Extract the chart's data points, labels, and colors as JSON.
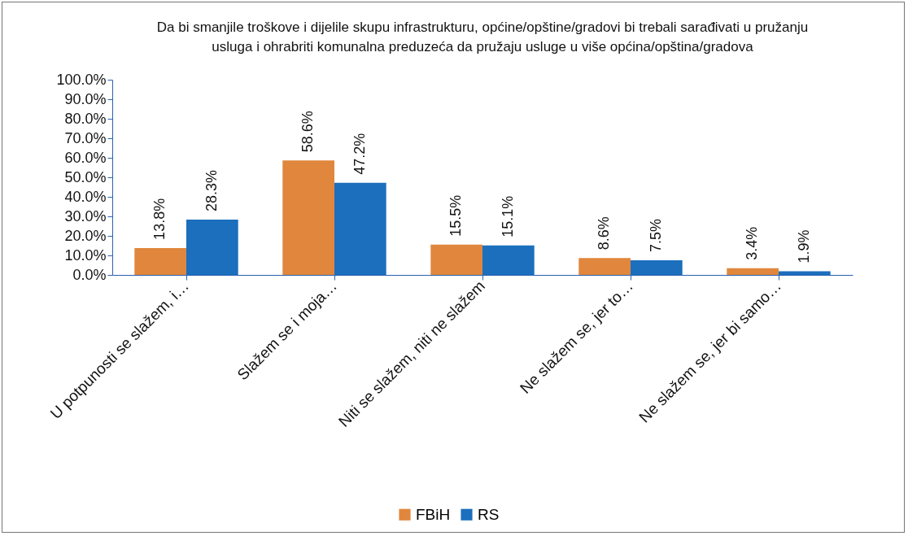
{
  "chart_data": {
    "type": "bar",
    "title": "Da bi smanjile troškove i dijelile skupu infrastrukturu, općine/opštine/gradovi bi trebali sarađivati u pružanju usluga i ohrabriti komunalna preduzeća da pružaju usluge u više općina/opština/gradova",
    "categories": [
      "U potpunosti se slažem, i…",
      "Slažem se i moja…",
      "Niti se slažem, niti ne slažem",
      "Ne slažem se, jer to…",
      "Ne slažem se, jer bi samo…"
    ],
    "series": [
      {
        "name": "FBiH",
        "color": "#e0873d",
        "values": [
          13.8,
          58.6,
          15.5,
          8.6,
          3.4
        ],
        "value_labels": [
          "13.8%",
          "58.6%",
          "15.5%",
          "8.6%",
          "3.4%"
        ]
      },
      {
        "name": "RS",
        "color": "#1b6fbd",
        "values": [
          28.3,
          47.2,
          15.1,
          7.5,
          1.9
        ],
        "value_labels": [
          "28.3%",
          "47.2%",
          "15.1%",
          "7.5%",
          "1.9%"
        ]
      }
    ],
    "ylim": [
      0,
      100
    ],
    "yticks": [
      {
        "value": 0,
        "label": "0.0%"
      },
      {
        "value": 10,
        "label": "10.0%"
      },
      {
        "value": 20,
        "label": "20.0%"
      },
      {
        "value": 30,
        "label": "30.0%"
      },
      {
        "value": 40,
        "label": "40.0%"
      },
      {
        "value": 50,
        "label": "50.0%"
      },
      {
        "value": 60,
        "label": "60.0%"
      },
      {
        "value": 70,
        "label": "70.0%"
      },
      {
        "value": 80,
        "label": "80.0%"
      },
      {
        "value": 90,
        "label": "90.0%"
      },
      {
        "value": 100,
        "label": "100.0%"
      }
    ],
    "grid": false,
    "legend": "bottom"
  }
}
